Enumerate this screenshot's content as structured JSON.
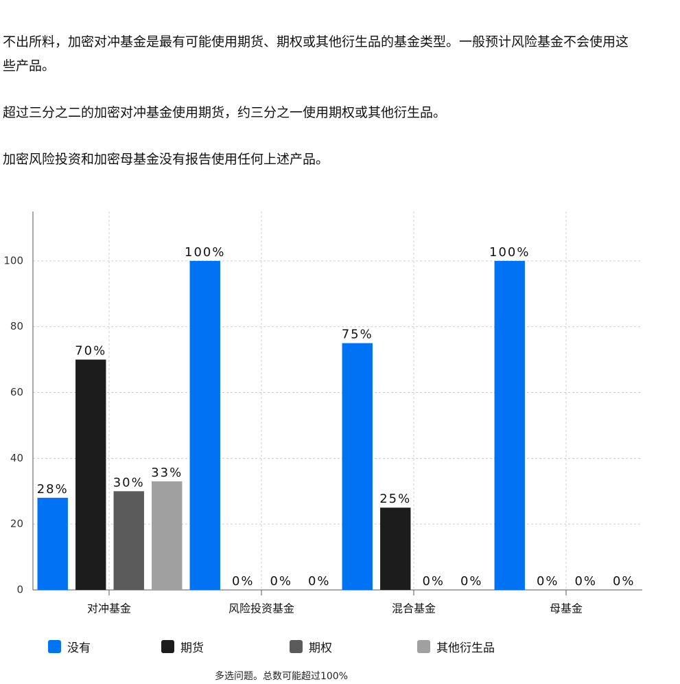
{
  "paragraphs": [
    "不出所料，加密对冲基金是最有可能使用期货、期权或其他衍生品的基金类型。一般预计风险基金不会使用这些产品。",
    "超过三分之二的加密对冲基金使用期货，约三分之一使用期权或其他衍生品。",
    "加密风险投资和加密母基金没有报告使用任何上述产品。"
  ],
  "chart_data": {
    "type": "bar",
    "categories": [
      "对冲基金",
      "风险投资基金",
      "混合基金",
      "母基金"
    ],
    "series": [
      {
        "name": "没有",
        "color": "#0073f5",
        "values": [
          28,
          100,
          75,
          100
        ],
        "value_labels": [
          "28%",
          "100%",
          "75%",
          "100%"
        ]
      },
      {
        "name": "期货",
        "color": "#1c1c1c",
        "values": [
          70,
          0,
          25,
          0
        ],
        "value_labels": [
          "70%",
          "0%",
          "25%",
          "0%"
        ]
      },
      {
        "name": "期权",
        "color": "#5b5b5b",
        "values": [
          30,
          0,
          0,
          0
        ],
        "value_labels": [
          "30%",
          "0%",
          "0%",
          "0%"
        ]
      },
      {
        "name": "其他衍生品",
        "color": "#a0a0a0",
        "values": [
          33,
          0,
          0,
          0
        ],
        "value_labels": [
          "33%",
          "0%",
          "0%",
          "0%"
        ]
      }
    ],
    "ylim": [
      0,
      115
    ],
    "yticks": [
      0,
      20,
      40,
      60,
      80,
      100
    ],
    "grid": true,
    "footnote": "多选问题。总数可能超过100%"
  }
}
